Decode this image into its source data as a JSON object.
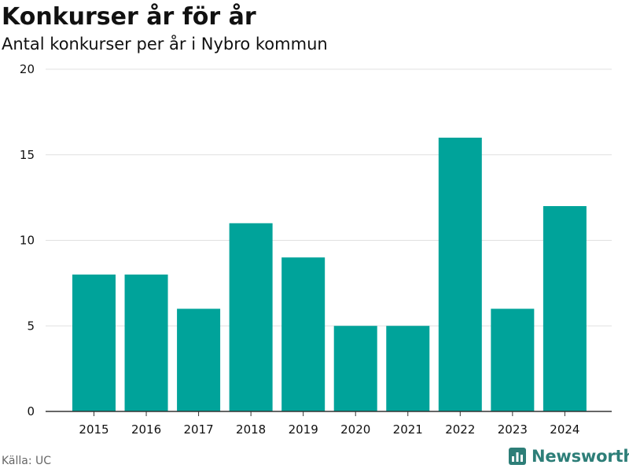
{
  "title": "Konkurser år för år",
  "subtitle": "Antal konkurser per år i Nybro kommun",
  "source": "Källa: UC",
  "brand": {
    "name": "Newsworthy",
    "icon": "newsworthy-logo-icon"
  },
  "colors": {
    "bar": "#00A39A",
    "grid": "#e0e0e0",
    "axis": "#333333",
    "brand": "#2d7e78"
  },
  "chart_data": {
    "type": "bar",
    "title": "Konkurser år för år",
    "subtitle": "Antal konkurser per år i Nybro kommun",
    "xlabel": "",
    "ylabel": "",
    "categories": [
      "2015",
      "2016",
      "2017",
      "2018",
      "2019",
      "2020",
      "2021",
      "2022",
      "2023",
      "2024"
    ],
    "values": [
      8,
      8,
      6,
      11,
      9,
      5,
      5,
      16,
      6,
      12
    ],
    "ylim": [
      0,
      20
    ],
    "yticks": [
      0,
      5,
      10,
      15,
      20
    ],
    "grid": true,
    "legend": "none"
  }
}
